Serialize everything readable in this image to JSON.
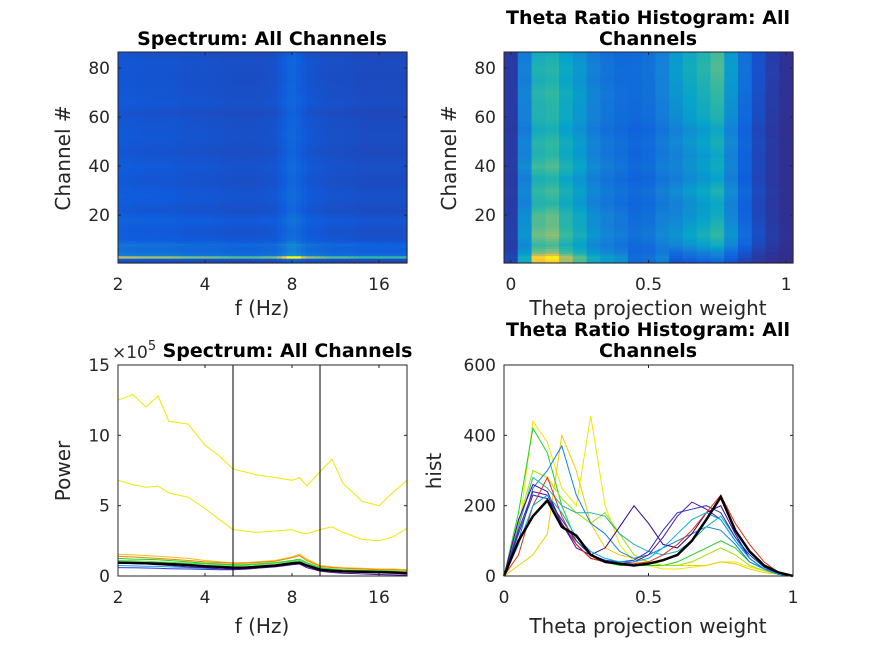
{
  "colormap": "parula",
  "colors": {
    "vline": "#000000",
    "mean_line": "#000000",
    "axis": "#262626"
  },
  "chart_data": [
    {
      "id": "spectrum-heatmap",
      "type": "heatmap",
      "title": "Spectrum: All Channels",
      "xlabel": "f (Hz)",
      "ylabel": "Channel #",
      "xscale": "log",
      "xlim": [
        2,
        20
      ],
      "ylim": [
        0.5,
        86.5
      ],
      "xticks": [
        2,
        4,
        8,
        16
      ],
      "xticklabels": [
        "2",
        "4",
        "8",
        "16"
      ],
      "yticks": [
        20,
        40,
        60,
        80
      ],
      "yticklabels": [
        "20",
        "40",
        "60",
        "80"
      ],
      "freqs": [
        2,
        2.5,
        3,
        3.5,
        4,
        5,
        6,
        7,
        7.5,
        8,
        8.5,
        9,
        10,
        11,
        12,
        14,
        16,
        18,
        20
      ],
      "column_intensity": [
        0.14,
        0.13,
        0.13,
        0.12,
        0.12,
        0.11,
        0.11,
        0.12,
        0.15,
        0.2,
        0.16,
        0.13,
        0.12,
        0.11,
        0.11,
        0.1,
        0.1,
        0.1,
        0.1
      ],
      "row_channels": [
        1,
        2,
        3,
        4,
        6,
        8,
        10,
        14,
        18,
        22,
        28,
        34,
        40,
        46,
        52,
        58,
        62,
        66,
        70,
        76,
        82,
        86
      ],
      "row_gain": [
        0.7,
        1.0,
        6.0,
        2.0,
        1.6,
        1.8,
        1.2,
        1.1,
        1.3,
        1.0,
        1.15,
        1.0,
        1.1,
        0.95,
        1.05,
        1.0,
        0.9,
        1.05,
        1.0,
        0.95,
        1.0,
        0.9
      ]
    },
    {
      "id": "theta-histogram-heatmap",
      "type": "heatmap",
      "title": "Theta Ratio Histogram: All Channels",
      "xlabel": "Theta projection weight",
      "ylabel": "Channel #",
      "xlim": [
        -0.025,
        1.025
      ],
      "ylim": [
        0.5,
        86.5
      ],
      "xticks": [
        0,
        0.5,
        1
      ],
      "xticklabels": [
        "0",
        "0.5",
        "1"
      ],
      "yticks": [
        20,
        40,
        60,
        80
      ],
      "yticklabels": [
        "20",
        "40",
        "60",
        "80"
      ],
      "bins": [
        0,
        0.05,
        0.1,
        0.15,
        0.2,
        0.25,
        0.3,
        0.35,
        0.4,
        0.45,
        0.5,
        0.55,
        0.6,
        0.65,
        0.7,
        0.75,
        0.8,
        0.85,
        0.9,
        0.95,
        1
      ],
      "column_intensity": [
        0.05,
        0.3,
        0.55,
        0.58,
        0.48,
        0.4,
        0.3,
        0.25,
        0.22,
        0.2,
        0.22,
        0.28,
        0.35,
        0.42,
        0.48,
        0.55,
        0.35,
        0.2,
        0.1,
        0.05,
        0.02
      ],
      "row_channels": [
        1,
        3,
        5,
        8,
        12,
        16,
        20,
        25,
        30,
        35,
        40,
        45,
        50,
        55,
        60,
        65,
        70,
        75,
        80,
        86
      ],
      "row_left_bias": [
        1.6,
        1.7,
        1.3,
        1.1,
        1.3,
        1.2,
        1.2,
        1.0,
        1.1,
        0.95,
        1.15,
        1.0,
        1.05,
        0.9,
        1.0,
        1.0,
        1.05,
        0.95,
        1.0,
        0.9
      ],
      "row_right_bias": [
        0.3,
        0.5,
        0.6,
        0.9,
        1.1,
        1.0,
        0.9,
        0.85,
        1.0,
        0.8,
        0.9,
        0.85,
        0.95,
        0.85,
        1.0,
        1.05,
        1.1,
        1.15,
        1.2,
        1.15
      ]
    },
    {
      "id": "spectrum-lines",
      "type": "line",
      "title": "Spectrum: All Channels",
      "xlabel": "f (Hz)",
      "ylabel": "Power",
      "exponent_base": "×10",
      "exponent_power": "5",
      "xscale": "log",
      "xlim": [
        2,
        20
      ],
      "ylim": [
        0,
        15
      ],
      "xticks": [
        2,
        4,
        8,
        16
      ],
      "xticklabels": [
        "2",
        "4",
        "8",
        "16"
      ],
      "yticks": [
        0,
        5,
        10,
        15
      ],
      "yticklabels": [
        "0",
        "5",
        "10",
        "15"
      ],
      "vlines": [
        5,
        10
      ],
      "x": [
        2,
        2.25,
        2.5,
        2.75,
        3,
        3.5,
        4,
        4.5,
        5,
        5.5,
        6,
        7,
        8,
        8.5,
        9,
        10,
        11,
        12,
        14,
        16,
        18,
        20
      ],
      "series": [
        {
          "color": "#f2e600",
          "values": [
            12.5,
            12.9,
            12.0,
            12.8,
            11.0,
            10.8,
            9.3,
            8.5,
            7.6,
            7.4,
            7.2,
            7.0,
            6.8,
            7.0,
            6.4,
            7.4,
            8.3,
            6.6,
            5.3,
            5.0,
            6.0,
            6.8
          ]
        },
        {
          "color": "#f2e600",
          "values": [
            6.8,
            6.5,
            6.3,
            6.4,
            5.9,
            5.6,
            4.8,
            4.0,
            3.3,
            3.2,
            3.1,
            3.2,
            3.3,
            3.1,
            3.0,
            3.3,
            3.5,
            3.1,
            2.6,
            2.5,
            2.8,
            3.4
          ]
        },
        {
          "color": "#e8c020",
          "values": [
            1.55,
            1.5,
            1.45,
            1.4,
            1.35,
            1.25,
            1.1,
            1.0,
            0.95,
            0.95,
            1.0,
            1.1,
            1.35,
            1.55,
            1.2,
            0.75,
            0.65,
            0.6,
            0.55,
            0.5,
            0.5,
            0.45
          ]
        },
        {
          "color": "#f08000",
          "values": [
            1.4,
            1.35,
            1.3,
            1.25,
            1.2,
            1.1,
            1.0,
            0.95,
            0.9,
            0.9,
            0.95,
            1.05,
            1.3,
            1.45,
            1.1,
            0.7,
            0.6,
            0.55,
            0.5,
            0.45,
            0.45,
            0.4
          ]
        },
        {
          "color": "#20d020",
          "values": [
            1.25,
            1.2,
            1.18,
            1.15,
            1.1,
            1.0,
            0.9,
            0.85,
            0.8,
            0.8,
            0.85,
            0.95,
            1.1,
            1.2,
            0.95,
            0.6,
            0.5,
            0.45,
            0.4,
            0.38,
            0.35,
            0.3
          ]
        },
        {
          "color": "#40e040",
          "values": [
            1.1,
            1.08,
            1.05,
            1.0,
            0.98,
            0.92,
            0.85,
            0.8,
            0.75,
            0.75,
            0.8,
            0.9,
            1.05,
            1.1,
            0.9,
            0.55,
            0.45,
            0.42,
            0.38,
            0.35,
            0.3,
            0.28
          ]
        },
        {
          "color": "#20a0e0",
          "values": [
            0.75,
            0.72,
            0.7,
            0.68,
            0.65,
            0.6,
            0.55,
            0.52,
            0.5,
            0.52,
            0.6,
            0.75,
            0.95,
            1.0,
            0.8,
            0.5,
            0.4,
            0.35,
            0.3,
            0.28,
            0.25,
            0.22
          ]
        },
        {
          "color": "#2040e0",
          "values": [
            0.6,
            0.58,
            0.57,
            0.55,
            0.52,
            0.5,
            0.47,
            0.45,
            0.45,
            0.48,
            0.55,
            0.7,
            0.9,
            0.95,
            0.7,
            0.45,
            0.35,
            0.3,
            0.25,
            0.22,
            0.2,
            0.18
          ]
        },
        {
          "color": "#5010a0",
          "values": [
            0.9,
            0.88,
            0.85,
            0.8,
            0.75,
            0.65,
            0.58,
            0.52,
            0.48,
            0.5,
            0.55,
            0.65,
            0.8,
            0.85,
            0.6,
            0.35,
            0.25,
            0.2,
            0.15,
            0.1,
            0.08,
            0.05
          ]
        },
        {
          "color": "#000000",
          "width": 2.5,
          "values": [
            0.95,
            0.93,
            0.9,
            0.88,
            0.85,
            0.78,
            0.7,
            0.65,
            0.6,
            0.6,
            0.65,
            0.75,
            0.9,
            0.95,
            0.75,
            0.45,
            0.38,
            0.33,
            0.3,
            0.28,
            0.25,
            0.2
          ]
        }
      ]
    },
    {
      "id": "theta-histogram-lines",
      "type": "line",
      "title": "Theta Ratio Histogram: All Channels",
      "xlabel": "Theta projection weight",
      "ylabel": "hist",
      "xlim": [
        0,
        1
      ],
      "ylim": [
        0,
        600
      ],
      "xticks": [
        0,
        0.5,
        1
      ],
      "xticklabels": [
        "0",
        "0.5",
        "1"
      ],
      "yticks": [
        0,
        200,
        400,
        600
      ],
      "yticklabels": [
        "0",
        "200",
        "400",
        "600"
      ],
      "x": [
        0,
        0.05,
        0.1,
        0.15,
        0.2,
        0.25,
        0.3,
        0.35,
        0.4,
        0.45,
        0.5,
        0.55,
        0.6,
        0.65,
        0.7,
        0.75,
        0.8,
        0.85,
        0.9,
        0.95,
        1
      ],
      "series": [
        {
          "color": "#f2e600",
          "values": [
            0,
            120,
            440,
            380,
            250,
            200,
            455,
            200,
            90,
            40,
            30,
            20,
            20,
            25,
            30,
            40,
            40,
            25,
            15,
            10,
            0
          ]
        },
        {
          "color": "#e8d000",
          "values": [
            0,
            30,
            60,
            120,
            400,
            300,
            150,
            80,
            60,
            50,
            40,
            30,
            30,
            30,
            30,
            40,
            35,
            20,
            10,
            5,
            0
          ]
        },
        {
          "color": "#20d020",
          "values": [
            0,
            180,
            420,
            350,
            200,
            100,
            60,
            40,
            30,
            30,
            30,
            30,
            40,
            60,
            80,
            100,
            80,
            40,
            20,
            10,
            0
          ]
        },
        {
          "color": "#a0e000",
          "values": [
            0,
            150,
            300,
            280,
            220,
            180,
            150,
            180,
            120,
            60,
            40,
            30,
            30,
            40,
            60,
            80,
            60,
            30,
            15,
            5,
            0
          ]
        },
        {
          "color": "#1080e0",
          "values": [
            0,
            100,
            250,
            300,
            370,
            230,
            150,
            120,
            70,
            50,
            60,
            80,
            100,
            120,
            140,
            130,
            90,
            40,
            20,
            5,
            0
          ]
        },
        {
          "color": "#20b0b0",
          "values": [
            0,
            140,
            280,
            250,
            200,
            180,
            180,
            170,
            120,
            90,
            70,
            60,
            70,
            100,
            140,
            170,
            110,
            50,
            20,
            5,
            0
          ]
        },
        {
          "color": "#400090",
          "values": [
            0,
            160,
            260,
            240,
            150,
            80,
            60,
            80,
            140,
            200,
            150,
            90,
            80,
            120,
            180,
            200,
            120,
            50,
            20,
            5,
            0
          ]
        },
        {
          "color": "#6010a0",
          "values": [
            0,
            130,
            240,
            230,
            150,
            90,
            50,
            40,
            35,
            40,
            60,
            110,
            170,
            210,
            190,
            160,
            100,
            50,
            20,
            5,
            0
          ]
        },
        {
          "color": "#2030c0",
          "values": [
            0,
            120,
            230,
            220,
            160,
            100,
            60,
            45,
            40,
            45,
            70,
            130,
            180,
            190,
            200,
            180,
            110,
            60,
            25,
            5,
            0
          ]
        },
        {
          "color": "#e03010",
          "values": [
            0,
            60,
            200,
            280,
            170,
            90,
            50,
            40,
            35,
            35,
            40,
            60,
            90,
            130,
            180,
            230,
            150,
            90,
            40,
            10,
            0
          ]
        },
        {
          "color": "#00b0e0",
          "values": [
            0,
            90,
            200,
            230,
            180,
            110,
            70,
            50,
            40,
            40,
            50,
            80,
            120,
            160,
            180,
            160,
            100,
            50,
            20,
            5,
            0
          ]
        },
        {
          "color": "#000000",
          "width": 2.5,
          "values": [
            0,
            100,
            170,
            215,
            140,
            115,
            60,
            40,
            35,
            30,
            35,
            45,
            60,
            100,
            160,
            225,
            130,
            70,
            30,
            10,
            0
          ]
        }
      ]
    }
  ]
}
